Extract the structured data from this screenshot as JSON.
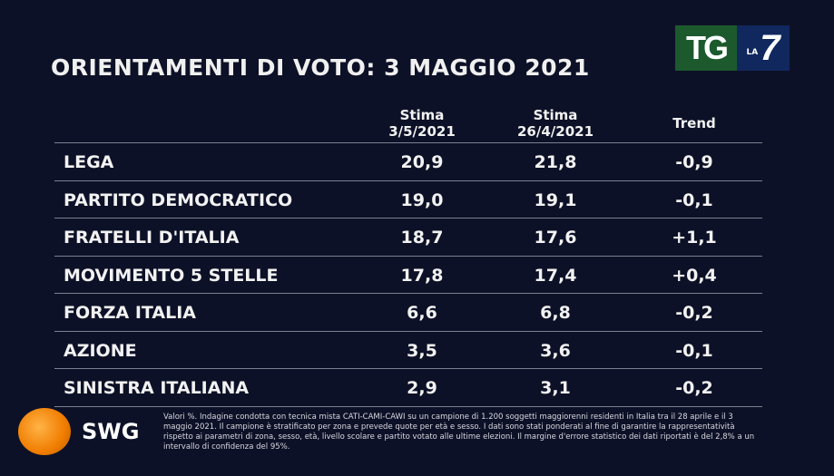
{
  "title": "ORIENTAMENTI DI VOTO: 3 MAGGIO 2021",
  "logo": {
    "tg": "TG",
    "la": "LA",
    "seven": "7"
  },
  "headers": {
    "col1": "Stima\n3/5/2021",
    "col1_a": "Stima",
    "col1_b": "3/5/2021",
    "col2_a": "Stima",
    "col2_b": "26/4/2021",
    "trend": "Trend"
  },
  "rows": [
    {
      "party": "LEGA",
      "v1": "20,9",
      "v2": "21,8",
      "trend": "-0,9"
    },
    {
      "party": "PARTITO DEMOCRATICO",
      "v1": "19,0",
      "v2": "19,1",
      "trend": "-0,1"
    },
    {
      "party": "FRATELLI D'ITALIA",
      "v1": "18,7",
      "v2": "17,6",
      "trend": "+1,1"
    },
    {
      "party": "MOVIMENTO 5 STELLE",
      "v1": "17,8",
      "v2": "17,4",
      "trend": "+0,4"
    },
    {
      "party": "FORZA ITALIA",
      "v1": "6,6",
      "v2": "6,8",
      "trend": "-0,2"
    },
    {
      "party": "AZIONE",
      "v1": "3,5",
      "v2": "3,6",
      "trend": "-0,1"
    },
    {
      "party": "SINISTRA ITALIANA",
      "v1": "2,9",
      "v2": "3,1",
      "trend": "-0,2"
    }
  ],
  "swg": "SWG",
  "note": "Valori %. Indagine condotta con tecnica mista CATI-CAMI-CAWI su un campione di 1.200 soggetti maggiorenni residenti in Italia tra il 28 aprile e il 3 maggio 2021. Il campione è stratificato per zona e prevede quote per età e sesso. I dati sono stati ponderati al fine di garantire la rappresentatività rispetto ai parametri di zona, sesso, età, livello scolare e partito votato alle ultime elezioni. Il margine d'errore statistico dei dati riportati è del 2,8% a un intervallo di confidenza del 95%."
}
